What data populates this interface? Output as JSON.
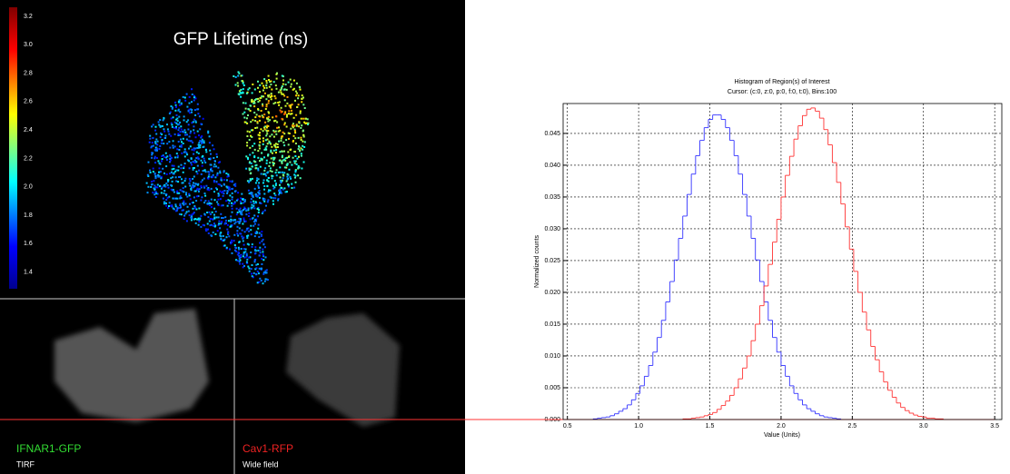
{
  "lifetime_panel": {
    "title": "GFP Lifetime (ns)",
    "colorbar_labels": [
      "3.2",
      "3.0",
      "2.8",
      "2.6",
      "2.4",
      "2.2",
      "2.0",
      "1.8",
      "1.6",
      "1.4"
    ]
  },
  "tirf_panel": {
    "label": "IFNAR1-GFP",
    "mode": "TIRF"
  },
  "widefield_panel": {
    "label": "Cav1-RFP",
    "mode": "Wide field"
  },
  "chart_data": {
    "type": "histogram",
    "title": "Histogram of Region(s) of Interest",
    "subtitle": "Cursor: (c:0, z:0, p:0, f:0, t:0), Bins:100",
    "x_label": "Value (Units)",
    "y_label": "Normalized counts",
    "bins": [
      0.5,
      0.53,
      0.56,
      0.59,
      0.62,
      0.65,
      0.68,
      0.71,
      0.74,
      0.77,
      0.8,
      0.83,
      0.86,
      0.89,
      0.92,
      0.95,
      0.98,
      1.01,
      1.04,
      1.07,
      1.1,
      1.13,
      1.16,
      1.19,
      1.22,
      1.25,
      1.28,
      1.31,
      1.34,
      1.37,
      1.4,
      1.43,
      1.46,
      1.49,
      1.52,
      1.55,
      1.58,
      1.61,
      1.64,
      1.67,
      1.7,
      1.73,
      1.76,
      1.79,
      1.82,
      1.85,
      1.88,
      1.91,
      1.94,
      1.97,
      2.0,
      2.03,
      2.06,
      2.09,
      2.12,
      2.15,
      2.18,
      2.21,
      2.24,
      2.27,
      2.3,
      2.33,
      2.36,
      2.39,
      2.42,
      2.45,
      2.48,
      2.51,
      2.54,
      2.57,
      2.6,
      2.63,
      2.66,
      2.69,
      2.72,
      2.75,
      2.78,
      2.81,
      2.84,
      2.87,
      2.9,
      2.93,
      2.96,
      2.99,
      3.02,
      3.05,
      3.08,
      3.11,
      3.14,
      3.17,
      3.2,
      3.23,
      3.26,
      3.29,
      3.32,
      3.35,
      3.38,
      3.41,
      3.44,
      3.47,
      3.5
    ],
    "series": [
      {
        "color": "#3333ff",
        "values": [
          0,
          0,
          0,
          0,
          0,
          0,
          0.0001,
          0.0002,
          0.0003,
          0.0004,
          0.0006,
          0.0009,
          0.0013,
          0.0017,
          0.0023,
          0.0031,
          0.0041,
          0.0053,
          0.0068,
          0.0085,
          0.0106,
          0.0129,
          0.0156,
          0.0185,
          0.0217,
          0.0251,
          0.0285,
          0.032,
          0.0354,
          0.0386,
          0.0415,
          0.0439,
          0.0459,
          0.0472,
          0.0479,
          0.0479,
          0.0472,
          0.0459,
          0.0439,
          0.0415,
          0.0386,
          0.0354,
          0.032,
          0.0285,
          0.0251,
          0.0217,
          0.0185,
          0.0156,
          0.0129,
          0.0106,
          0.0085,
          0.0068,
          0.0053,
          0.0041,
          0.0031,
          0.0023,
          0.0017,
          0.0013,
          0.0009,
          0.0006,
          0.0004,
          0.0003,
          0.0002,
          0.0001,
          0,
          0,
          0,
          0,
          0,
          0,
          0,
          0,
          0,
          0,
          0,
          0,
          0,
          0,
          0,
          0,
          0,
          0,
          0,
          0,
          0,
          0,
          0,
          0,
          0,
          0,
          0,
          0,
          0,
          0,
          0,
          0,
          0,
          0,
          0,
          0
        ]
      },
      {
        "color": "#ff3333",
        "values": [
          0,
          0,
          0,
          0,
          0,
          0,
          0,
          0,
          0,
          0,
          0,
          0,
          0,
          0,
          0,
          0,
          0,
          0,
          0,
          0,
          0,
          0,
          0,
          0,
          0,
          0,
          0,
          0.0001,
          0.0001,
          0.0002,
          0.0003,
          0.0004,
          0.0006,
          0.0008,
          0.0011,
          0.0016,
          0.0022,
          0.0029,
          0.0038,
          0.005,
          0.0064,
          0.0081,
          0.01,
          0.0124,
          0.015,
          0.0179,
          0.021,
          0.0244,
          0.0279,
          0.0315,
          0.035,
          0.0384,
          0.0414,
          0.0441,
          0.0462,
          0.0478,
          0.0488,
          0.049,
          0.0485,
          0.0474,
          0.0456,
          0.0432,
          0.0404,
          0.0373,
          0.0339,
          0.0303,
          0.0268,
          0.0233,
          0.02,
          0.0169,
          0.0141,
          0.0115,
          0.0094,
          0.0075,
          0.0059,
          0.0046,
          0.0035,
          0.0026,
          0.0019,
          0.0014,
          0.001,
          0.0007,
          0.0005,
          0.0004,
          0.0002,
          0.0002,
          0.0001,
          0.0001,
          0,
          0,
          0,
          0,
          0,
          0,
          0,
          0,
          0,
          0,
          0,
          0,
          0
        ]
      }
    ],
    "xlim": [
      0.47,
      3.55
    ],
    "xticks": [
      0.5,
      {
        "value": 1,
        "label": "1.0"
      },
      1.5,
      {
        "value": 2,
        "label": "2.0"
      },
      2.5,
      {
        "value": 3,
        "label": "3.0"
      },
      3.5
    ],
    "ylim": [
      0,
      0.0497
    ],
    "yticks": [
      {
        "value": 0,
        "label": "0.000"
      },
      {
        "value": 0.005,
        "label": "0.005"
      },
      {
        "value": 0.01,
        "label": "0.010"
      },
      {
        "value": 0.015,
        "label": "0.015"
      },
      {
        "value": 0.02,
        "label": "0.020"
      },
      {
        "value": 0.025,
        "label": "0.025"
      },
      {
        "value": 0.03,
        "label": "0.030"
      },
      {
        "value": 0.035,
        "label": "0.035"
      },
      {
        "value": 0.04,
        "label": "0.040"
      },
      {
        "value": 0.045,
        "label": "0.045"
      }
    ],
    "grid": true
  }
}
